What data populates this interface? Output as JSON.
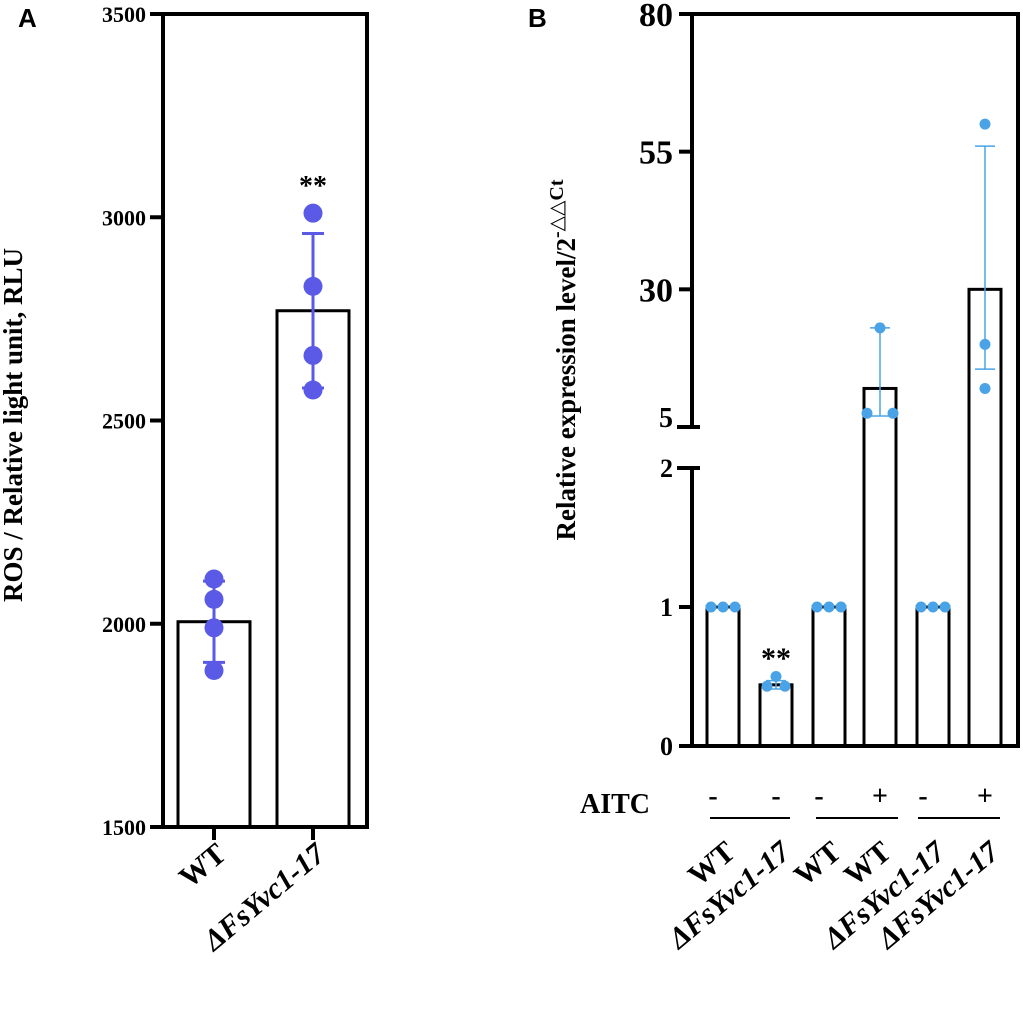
{
  "panel_a": {
    "letter": "A",
    "ylabel": "ROS / Relative light unit, RLU",
    "significance": "**",
    "yticks": [
      "1500",
      "2000",
      "2500",
      "3000",
      "3500"
    ],
    "bar_color": "#ffffff",
    "point_color": "#5a5ae6"
  },
  "panel_b": {
    "letter": "B",
    "ylabel_main": "Relative expression level/2",
    "ylabel_sup": "-△△Ct",
    "significance": "**",
    "upper_ticks": [
      "5",
      "30",
      "55",
      "80"
    ],
    "lower_ticks": [
      "0",
      "1",
      "2"
    ],
    "aitc_label": "AITC",
    "point_color": "#4aa3e6"
  },
  "chart_data": [
    {
      "type": "bar",
      "title": "A",
      "ylabel": "ROS / Relative light unit, RLU",
      "ylim": [
        1500,
        3500
      ],
      "yticks": [
        1500,
        2000,
        2500,
        3000,
        3500
      ],
      "categories": [
        "WT",
        "ΔFsYvc1-17"
      ],
      "values": [
        2005,
        2770
      ],
      "error": [
        100,
        190
      ],
      "points": [
        [
          2110,
          2060,
          1990,
          1885
        ],
        [
          3010,
          2830,
          2660,
          2575
        ]
      ],
      "annotations": [
        {
          "category": "ΔFsYvc1-17",
          "text": "**"
        }
      ]
    },
    {
      "type": "bar",
      "title": "B",
      "ylabel": "Relative expression level/2-△△Ct",
      "y_axis_broken": true,
      "lower_range": [
        0,
        2
      ],
      "upper_range": [
        5,
        80
      ],
      "categories": [
        "WT",
        "ΔFsYvc1-17",
        "WT",
        "WT",
        "ΔFsYvc1-17",
        "ΔFsYvc1-17"
      ],
      "aitc": [
        "-",
        "-",
        "-",
        "+",
        "-",
        "+"
      ],
      "values": [
        1,
        0.44,
        1,
        12,
        1,
        30
      ],
      "error_low": [
        0,
        0.03,
        0,
        5,
        0,
        14.5
      ],
      "error_high": [
        0,
        0.03,
        0,
        11,
        0,
        26
      ],
      "points": [
        [
          1,
          1,
          1
        ],
        [
          0.5,
          0.43,
          0.43
        ],
        [
          1,
          1,
          1
        ],
        [
          23,
          7.5,
          7.5
        ],
        [
          1,
          1,
          1
        ],
        [
          60,
          20,
          12
        ]
      ],
      "annotations": [
        {
          "category_index": 1,
          "text": "**"
        }
      ]
    }
  ]
}
